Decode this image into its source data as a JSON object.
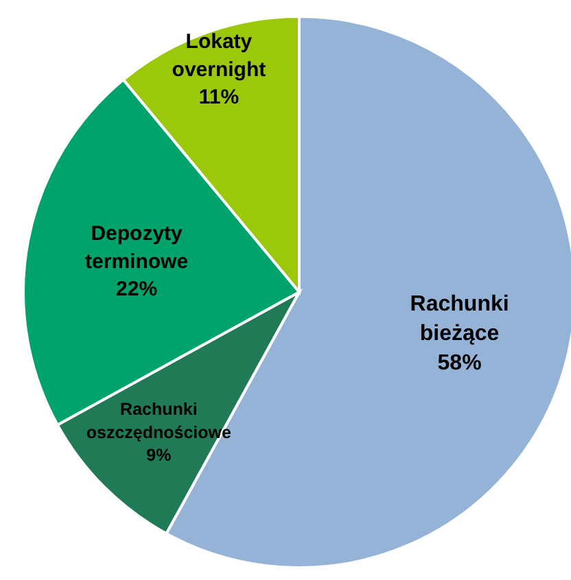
{
  "chart_data": {
    "type": "pie",
    "categories": [
      "Rachunki bieżące",
      "Rachunki oszczędnościowe",
      "Depozyty terminowe",
      "Lokaty overnight"
    ],
    "values": [
      58,
      9,
      22,
      11
    ],
    "colors": [
      "#95b3d7",
      "#1f7a55",
      "#00a36c",
      "#9bc80a"
    ],
    "value_labels": [
      "58%",
      "9%",
      "22%",
      "11%"
    ]
  }
}
